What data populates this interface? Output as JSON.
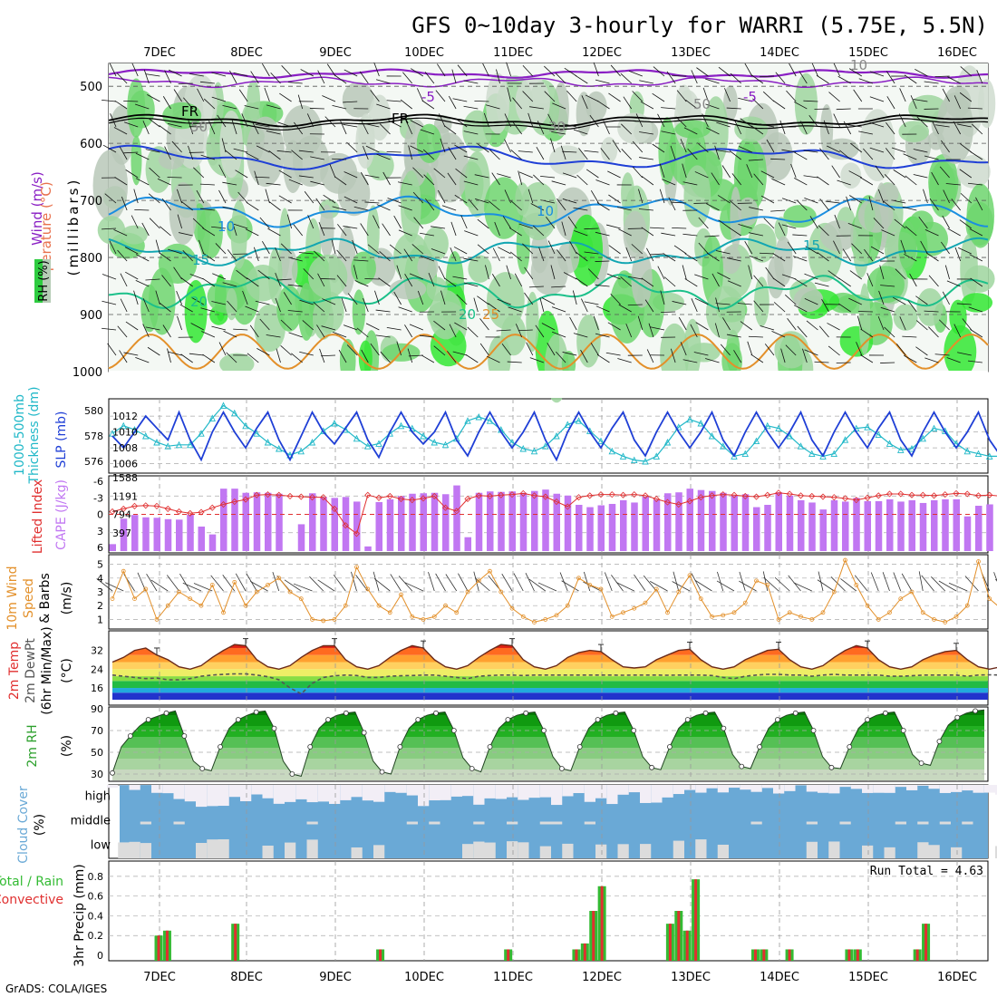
{
  "header": {
    "title": "GFS 0~10day 3-hourly for WARRI (5.75E, 5.5N)",
    "credit": "GrADS: COLA/IGES"
  },
  "colors": {
    "purple": "#8a1fc4",
    "black": "#000000",
    "blue": "#1f3fd6",
    "skyblue": "#1a8ee0",
    "teal": "#12a6b2",
    "green_line": "#1cc08a",
    "orange": "#e3902a",
    "cyan": "#21b8c8",
    "lilac": "#c177f2",
    "red": "#e03030",
    "cloud": "#6aa9d6",
    "rain_green": "#33bb33",
    "rain_red": "#e03030"
  },
  "time_axis": {
    "days": [
      "7DEC",
      "8DEC",
      "9DEC",
      "10DEC",
      "11DEC",
      "12DEC",
      "13DEC",
      "14DEC",
      "15DEC",
      "16DEC"
    ]
  },
  "panels": {
    "upper_air": {
      "axis_labels": [
        "Wind (m/s)",
        "Temperature (°C)",
        "RH (%)",
        "(millibars)"
      ],
      "pressure_ticks": [
        500,
        600,
        700,
        800,
        900,
        1000
      ],
      "rh_legend": "RH (%)",
      "contour_labels": [
        "-5",
        "-5",
        "FR",
        "FR",
        "10",
        "10",
        "15",
        "15",
        "20",
        "20",
        "25",
        "30",
        "50",
        "50",
        "10"
      ]
    },
    "sea_level": {
      "left_label_1": "1000-500mb",
      "left_label_2": "Thickness (dm)",
      "right_label": "SLP (mb)",
      "thickness_ticks": [
        "580",
        "578",
        "576"
      ],
      "slp_ticks": [
        "1012",
        "1010",
        "1008",
        "1006"
      ]
    },
    "stability": {
      "left_label": "Lifted Index",
      "right_label": "CAPE (J/kg)",
      "li_ticks": [
        "-6",
        "-3",
        "0",
        "3",
        "6"
      ],
      "cape_ticks": [
        "1588",
        "1191",
        "794",
        "397"
      ]
    },
    "wind": {
      "label_1": "10m Wind",
      "label_2": "Speed",
      "label_3": "& Barbs",
      "units": "(m/s)",
      "ticks": [
        "1",
        "2",
        "3",
        "4",
        "5"
      ]
    },
    "temp": {
      "label_1": "2m Temp",
      "label_2": "2m DewPt",
      "label_3": "(6hr Min/Max)",
      "units": "(°C)",
      "ticks": [
        "16",
        "24",
        "32"
      ]
    },
    "rh": {
      "label": "2m RH",
      "units": "(%)",
      "ticks": [
        "30",
        "50",
        "70",
        "90"
      ]
    },
    "cloud": {
      "label": "Cloud Cover",
      "units": "(%)",
      "levels": [
        "high",
        "middle",
        "low"
      ]
    },
    "precip": {
      "label": "3hr Precip (mm)",
      "legend_1": "Total / Rain",
      "legend_2": "Convective",
      "run_total": "Run Total = 4.63",
      "ticks": [
        "0",
        "0.2",
        "0.4",
        "0.6",
        "0.8"
      ]
    }
  },
  "chart_data": {
    "type": "meteogram",
    "title": "GFS 0~10day 3-hourly for WARRI (5.75E, 5.5N)",
    "x_labels": [
      "7DEC",
      "8DEC",
      "9DEC",
      "10DEC",
      "11DEC",
      "12DEC",
      "13DEC",
      "14DEC",
      "15DEC",
      "16DEC"
    ],
    "series": [
      {
        "name": "SLP (mb)",
        "ylim": [
          1005.5,
          1013.5
        ],
        "values": [
          1009.5,
          1008,
          1010,
          1012,
          1010.5,
          1009,
          1012.5,
          1009,
          1006.5,
          1010,
          1012.5,
          1010,
          1008,
          1010.5,
          1012.5,
          1009,
          1006.5,
          1009.5,
          1012.5,
          1010,
          1008.5,
          1010.5,
          1012.5,
          1009,
          1006.8,
          1010,
          1012.5,
          1010,
          1008.5,
          1010,
          1012.5,
          1009,
          1007,
          1010,
          1012.5,
          1010,
          1008,
          1010,
          1012.5,
          1009,
          1006.5,
          1010,
          1012.5,
          1010,
          1008,
          1010.5,
          1012.5,
          1009,
          1007,
          1010,
          1012.5,
          1010,
          1008,
          1010,
          1012.5,
          1009,
          1007,
          1010,
          1012.5,
          1010,
          1008,
          1010,
          1012.5,
          1009,
          1007,
          1010,
          1012.5,
          1010,
          1008,
          1010.5,
          1012.5,
          1009,
          1007,
          1010,
          1012.5,
          1010,
          1008,
          1010,
          1012.5,
          1009,
          1007,
          1010.5
        ]
      },
      {
        "name": "1000-500mb Thickness (dm)",
        "ylim": [
          575.5,
          580.5
        ],
        "values": [
          578.2,
          578.8,
          578.5,
          578,
          577.5,
          577.2,
          577.3,
          577.3,
          578.2,
          579.4,
          580.4,
          579.8,
          578.8,
          578.2,
          577.5,
          577,
          576.5,
          576.8,
          577.5,
          578.4,
          579,
          578.5,
          577.8,
          577.2,
          577.4,
          578.2,
          578.8,
          578.6,
          578,
          577.5,
          577.3,
          577.8,
          579.2,
          579.5,
          579.2,
          578.5,
          577.5,
          577,
          576.8,
          577.2,
          578,
          578.9,
          579.2,
          578.4,
          577.6,
          576.8,
          576.4,
          576.1,
          576,
          576.4,
          577.5,
          578.7,
          579.3,
          579,
          578,
          577.2,
          576.4,
          576.6,
          577.6,
          578.8,
          578.6,
          578,
          577.2,
          576.6,
          576.4,
          576.6,
          577.7,
          578.6,
          578.7,
          578.1,
          577.4,
          576.9,
          577,
          577.8,
          578.6,
          578.4,
          577.4,
          576.8,
          576.6,
          576.4,
          576.4,
          576.3
        ]
      },
      {
        "name": "Lifted Index",
        "ylim": [
          6,
          -6
        ],
        "values": [
          -0.5,
          -1,
          -1.5,
          -1.6,
          -1.5,
          -1,
          -0.5,
          -0.2,
          -0.4,
          -1.2,
          -1.8,
          -2.3,
          -2.7,
          -3.5,
          -3.6,
          -3.5,
          -3.3,
          -3.2,
          -3.1,
          -3.1,
          -1,
          2,
          3.5,
          -3.5,
          -3,
          -3.3,
          -2.8,
          -2.6,
          -2.9,
          -3.3,
          -1.2,
          -0.6,
          -2.8,
          -3.4,
          -3.3,
          -3.5,
          -3.6,
          -3.8,
          -3.4,
          -3.2,
          -2.3,
          -1.4,
          -3.1,
          -3.4,
          -3.6,
          -3.6,
          -3.5,
          -3.6,
          -3.4,
          -2.8,
          -2.2,
          -1.8,
          -2.4,
          -3.1,
          -3.4,
          -3.6,
          -3.5,
          -3.3,
          -3.2,
          -3.5,
          -3.9,
          -3.7,
          -3.4,
          -3.3,
          -3.2,
          -3.1,
          -2.9,
          -2.6,
          -3,
          -3.4,
          -3.7,
          -3.7,
          -3.5,
          -3.5,
          -3.4,
          -3.6,
          -3.8,
          -3.7,
          -3.4,
          -3.5,
          -3.3,
          -3.1
        ]
      },
      {
        "name": "CAPE (J/kg)",
        "ylim": [
          0,
          1588
        ],
        "values": [
          150,
          700,
          780,
          730,
          720,
          690,
          680,
          790,
          530,
          360,
          1350,
          1350,
          1260,
          1270,
          1260,
          1240,
          0,
          580,
          1250,
          1170,
          1150,
          1170,
          1070,
          100,
          1060,
          1120,
          1190,
          1240,
          1250,
          1260,
          1230,
          1420,
          300,
          1260,
          1290,
          1280,
          1290,
          1260,
          1300,
          1330,
          1240,
          1200,
          1000,
          950,
          990,
          1020,
          1100,
          1050,
          1180,
          1110,
          1250,
          1270,
          1350,
          1320,
          1300,
          1260,
          1200,
          1230,
          950,
          1000,
          1270,
          1200,
          1100,
          1050,
          900,
          1100,
          1070,
          1150,
          1080,
          1080,
          1120,
          1070,
          1100,
          1040,
          1100,
          1120,
          1120,
          750,
          980,
          1010,
          1020,
          1030
        ]
      },
      {
        "name": "10m Wind Speed (m/s)",
        "ylim": [
          0.5,
          5.5
        ],
        "values": [
          2.5,
          4.5,
          2.5,
          3.2,
          1,
          2,
          3,
          2.5,
          2,
          3.5,
          1.5,
          3.7,
          2,
          3,
          3.5,
          4,
          3,
          2.5,
          1,
          0.9,
          1,
          2,
          4.8,
          3.2,
          2,
          1.5,
          2.8,
          1.2,
          1,
          1.2,
          2,
          1.5,
          3,
          3.8,
          4.5,
          3,
          1.8,
          1.2,
          0.8,
          1,
          1.3,
          2,
          4,
          3.5,
          3.2,
          1.2,
          1.5,
          1.8,
          2.2,
          3.2,
          1.5,
          3,
          4.2,
          2.5,
          1.2,
          1.3,
          1.5,
          2.2,
          3.8,
          3.5,
          1,
          1.5,
          1.2,
          1,
          1.5,
          3,
          5.3,
          3.5,
          2,
          1,
          1.5,
          2.5,
          3,
          1.5,
          1,
          0.8,
          1.2,
          2,
          5.2,
          2.5,
          1.8,
          0.9
        ]
      },
      {
        "name": "2m Temp (°C)",
        "ylim": [
          11,
          38
        ],
        "values": [
          27,
          29,
          32,
          33,
          30,
          28,
          25,
          24,
          25.5,
          29,
          32,
          34.5,
          34,
          28,
          25,
          24,
          25.5,
          29,
          32,
          34,
          34,
          28,
          25,
          24,
          25.5,
          29,
          32,
          34,
          33,
          28,
          25,
          24,
          25.5,
          29,
          32,
          34.5,
          34,
          28,
          25,
          24,
          25.5,
          29,
          31,
          32,
          31.5,
          28,
          25,
          24.5,
          25,
          28,
          30,
          32,
          32.5,
          28,
          25,
          24,
          25,
          28,
          30,
          32,
          32.5,
          28,
          25,
          24,
          25.5,
          29,
          32,
          34,
          33,
          28,
          25,
          24,
          25,
          28,
          30,
          31.5,
          32,
          28,
          25,
          24,
          25,
          25
        ]
      },
      {
        "name": "2m DewPt (°C)",
        "ylim": [
          11,
          38
        ],
        "values": [
          21.5,
          21,
          20.5,
          20,
          20.2,
          19.5,
          19.5,
          20,
          21,
          21.5,
          21.8,
          22,
          22,
          21.5,
          20.8,
          19.5,
          16,
          13.5,
          18,
          20.5,
          21.2,
          21.5,
          21.3,
          20.5,
          20.5,
          21,
          21.2,
          21.3,
          21.5,
          21.5,
          21,
          20.5,
          20,
          21,
          21.3,
          21.5,
          21.5,
          21.3,
          21.5,
          21.5,
          21.5,
          21.5,
          21.5,
          21.5,
          21.5,
          21.5,
          21.4,
          21.5,
          21.5,
          21.5,
          21.4,
          21.5,
          21.5,
          21.5,
          21.3,
          20.5,
          20,
          21,
          21.5,
          21.8,
          21.8,
          21.5,
          21.5,
          21,
          21.5,
          21.8,
          21.5,
          21.5,
          21.5,
          21.5,
          21,
          21,
          21.2,
          21.5,
          21.5,
          21.5,
          21.5,
          21,
          21.5,
          21.6,
          21.5,
          21.5
        ]
      },
      {
        "name": "2m RH (%)",
        "ylim": [
          25,
          90
        ],
        "values": [
          31,
          55,
          65,
          74,
          80,
          83,
          86,
          88,
          65,
          42,
          35,
          33,
          55,
          72,
          80,
          84,
          87,
          88,
          72,
          42,
          30,
          28,
          55,
          72,
          80,
          84,
          86,
          87,
          68,
          42,
          32,
          30,
          55,
          72,
          80,
          84,
          86,
          87,
          70,
          45,
          35,
          32,
          55,
          72,
          80,
          84,
          86,
          87,
          70,
          46,
          35,
          33,
          55,
          72,
          80,
          84,
          86,
          87,
          70,
          46,
          36,
          34,
          55,
          72,
          80,
          84,
          86,
          87,
          72,
          48,
          37,
          35,
          55,
          72,
          80,
          84,
          86,
          87,
          70,
          46,
          36,
          35,
          55,
          72,
          80,
          84,
          86,
          87,
          70,
          48,
          40,
          38,
          60,
          75,
          82,
          86,
          88,
          89
        ]
      },
      {
        "name": "3hr Precip (mm)",
        "ylim": [
          0,
          0.9
        ],
        "values": [
          0,
          0,
          0,
          0,
          0,
          0.2,
          0.25,
          0,
          0,
          0,
          0,
          0,
          0,
          0,
          0.32,
          0,
          0,
          0,
          0,
          0,
          0,
          0,
          0,
          0,
          0,
          0,
          0,
          0,
          0,
          0,
          0,
          0.06,
          0,
          0,
          0,
          0,
          0,
          0,
          0,
          0,
          0,
          0,
          0,
          0,
          0,
          0,
          0.06,
          0,
          0,
          0,
          0,
          0,
          0,
          0,
          0.06,
          0.12,
          0.45,
          0.7,
          0,
          0,
          0,
          0,
          0,
          0,
          0,
          0.32,
          0.45,
          0.25,
          0.77,
          0,
          0,
          0,
          0,
          0,
          0,
          0.06,
          0.06,
          0,
          0,
          0.06,
          0,
          0,
          0,
          0,
          0,
          0,
          0.06,
          0.06,
          0,
          0,
          0,
          0,
          0,
          0,
          0.06,
          0.32,
          0,
          0,
          0,
          0,
          0,
          0
        ]
      }
    ]
  }
}
